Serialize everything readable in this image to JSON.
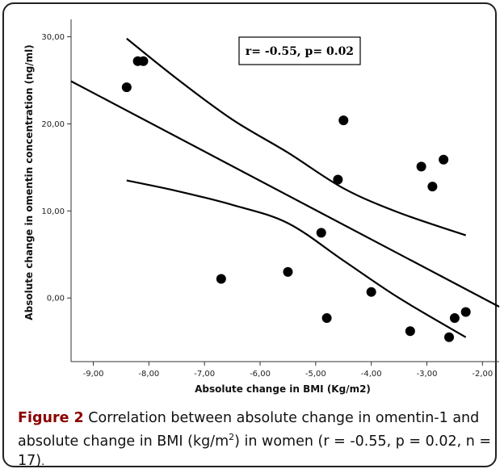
{
  "chart_data": {
    "type": "scatter",
    "xlabel": "Absolute change in BMI (Kg/m2)",
    "ylabel": "Absolute change in omentin concentration (ng/ml)",
    "xlim": [
      -9.4,
      -1.7
    ],
    "ylim": [
      -7.3,
      32
    ],
    "x_ticks": [
      -9,
      -8,
      -7,
      -6,
      -5,
      -4,
      -3,
      -2
    ],
    "x_tick_labels": [
      "-9,00",
      "-8,00",
      "-7,00",
      "-6,00",
      "-5,00",
      "-4,00",
      "-3,00",
      "-2,00"
    ],
    "y_ticks": [
      0,
      10,
      20,
      30
    ],
    "y_tick_labels": [
      "0,00",
      "10,00",
      "20,00",
      "30,00"
    ],
    "grid": false,
    "annotation": "r= -0.55, p= 0.02",
    "points": [
      {
        "x": -8.4,
        "y": 24.2
      },
      {
        "x": -8.2,
        "y": 27.2
      },
      {
        "x": -8.1,
        "y": 27.2
      },
      {
        "x": -6.7,
        "y": 2.2
      },
      {
        "x": -5.5,
        "y": 3.0
      },
      {
        "x": -4.9,
        "y": 7.5
      },
      {
        "x": -4.8,
        "y": -2.3
      },
      {
        "x": -4.6,
        "y": 13.6
      },
      {
        "x": -4.5,
        "y": 20.4
      },
      {
        "x": -4.0,
        "y": 0.7
      },
      {
        "x": -3.3,
        "y": -3.8
      },
      {
        "x": -3.1,
        "y": 15.1
      },
      {
        "x": -2.9,
        "y": 12.8
      },
      {
        "x": -2.7,
        "y": 15.9
      },
      {
        "x": -2.6,
        "y": -4.5
      },
      {
        "x": -2.5,
        "y": -2.3
      },
      {
        "x": -2.3,
        "y": -1.6
      }
    ],
    "fit_line": {
      "x": [
        -9.4,
        -1.7
      ],
      "y": [
        24.9,
        -1.0
      ]
    },
    "ci_upper": {
      "x": [
        -8.4,
        -7.5,
        -6.5,
        -5.5,
        -4.5,
        -3.5,
        -2.3
      ],
      "y": [
        29.8,
        25.2,
        20.5,
        16.7,
        12.6,
        9.8,
        7.2
      ]
    },
    "ci_lower": {
      "x": [
        -8.4,
        -7.5,
        -6.5,
        -5.5,
        -4.5,
        -3.5,
        -2.3
      ],
      "y": [
        13.5,
        12.3,
        10.7,
        8.6,
        4.3,
        0.0,
        -4.5
      ]
    }
  },
  "caption": {
    "figure_label": "Figure 2",
    "text": "Correlation between absolute change in omentin-1 and absolute change in BMI (kg/m",
    "superscript": "2",
    "text_after": ") in women (r = -0.55, p = 0.02, n = 17)",
    "end_punct": "."
  }
}
